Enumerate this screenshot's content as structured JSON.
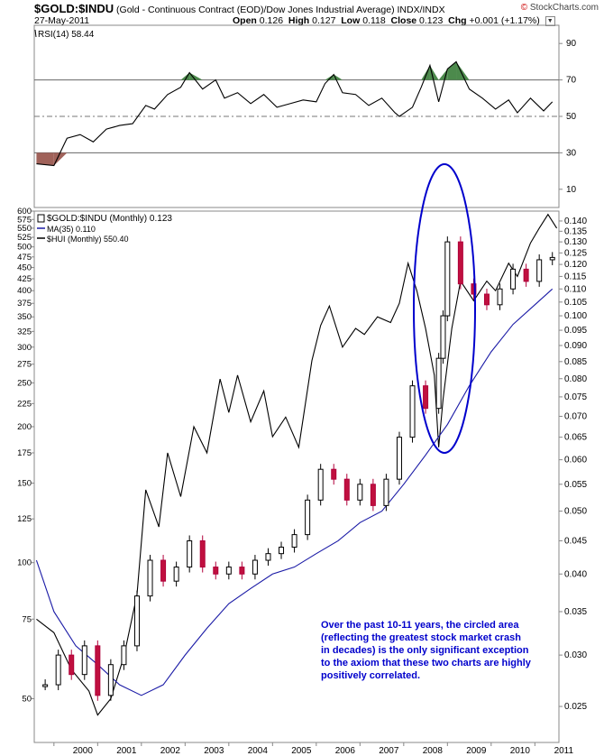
{
  "header": {
    "symbol": "$GOLD:$INDU",
    "description": "(Gold - Continuous Contract (EOD)/Dow Jones Industrial Average)",
    "exchange": "INDX/INDX",
    "brand": "StockCharts.com",
    "date": "27-May-2011",
    "open_label": "Open",
    "open": "0.126",
    "high_label": "High",
    "high": "0.127",
    "low_label": "Low",
    "low": "0.118",
    "close_label": "Close",
    "close": "0.123",
    "chg_label": "Chg",
    "chg": "+0.001 (+1.17%)",
    "dropdown_icon": "triangle-down-icon"
  },
  "legend": {
    "rsi": "RSI(14) 58.44",
    "main": "$GOLD:$INDU (Monthly) 0.123",
    "ma": "MA(35) 0.110",
    "hui": "$HUI (Monthly) 550.40"
  },
  "annotation": {
    "text_lines": [
      "Over the past 10-11 years, the circled area",
      "(reflecting the greatest stock market crash",
      "in decades) is the only significant exception",
      "to the axiom that these two charts are highly",
      "positively correlated."
    ],
    "color": "#0000cc"
  },
  "chart_data": [
    {
      "type": "line",
      "panel": "indicator",
      "name": "RSI(14)",
      "ylim": [
        0,
        100
      ],
      "y_ticks": [
        10,
        30,
        50,
        70,
        90
      ],
      "reference_lines": [
        30,
        50,
        70
      ],
      "x": [
        1999.6,
        2000.0,
        2000.3,
        2000.6,
        2000.9,
        2001.2,
        2001.5,
        2001.8,
        2002.1,
        2002.3,
        2002.6,
        2002.9,
        2003.1,
        2003.4,
        2003.7,
        2003.9,
        2004.2,
        2004.5,
        2004.8,
        2005.1,
        2005.4,
        2005.7,
        2006.0,
        2006.2,
        2006.4,
        2006.6,
        2006.9,
        2007.2,
        2007.5,
        2007.8,
        2007.9,
        2008.2,
        2008.4,
        2008.6,
        2008.8,
        2009.0,
        2009.2,
        2009.5,
        2009.8,
        2010.1,
        2010.4,
        2010.6,
        2010.9,
        2011.2,
        2011.4
      ],
      "values": [
        24,
        23,
        38,
        40,
        36,
        43,
        45,
        46,
        56,
        54,
        62,
        66,
        74,
        65,
        70,
        60,
        63,
        57,
        62,
        55,
        57,
        59,
        58,
        68,
        73,
        63,
        62,
        56,
        60,
        52,
        50,
        55,
        66,
        78,
        58,
        76,
        80,
        65,
        60,
        54,
        59,
        52,
        60,
        53,
        58
      ]
    },
    {
      "type": "candlestick",
      "panel": "price",
      "name": "$GOLD:$INDU (Monthly)",
      "y_scale": "log",
      "ylim": [
        0.022,
        0.145
      ],
      "y_ticks": [
        0.025,
        0.03,
        0.035,
        0.04,
        0.045,
        0.05,
        0.055,
        0.06,
        0.065,
        0.07,
        0.075,
        0.08,
        0.085,
        0.09,
        0.095,
        0.1,
        0.105,
        0.11,
        0.115,
        0.12,
        0.125,
        0.13,
        0.135,
        0.14
      ],
      "x_ticks": [
        "2000",
        "2001",
        "2002",
        "2003",
        "2004",
        "2005",
        "2006",
        "2007",
        "2008",
        "2009",
        "2010",
        "2011"
      ],
      "x": [
        1999.8,
        2000.1,
        2000.4,
        2000.7,
        2001.0,
        2001.3,
        2001.6,
        2001.9,
        2002.2,
        2002.5,
        2002.8,
        2003.1,
        2003.4,
        2003.7,
        2004.0,
        2004.3,
        2004.6,
        2004.9,
        2005.2,
        2005.5,
        2005.8,
        2006.1,
        2006.4,
        2006.7,
        2007.0,
        2007.3,
        2007.6,
        2007.9,
        2008.2,
        2008.5,
        2008.8,
        2008.9,
        2009.0,
        2009.3,
        2009.6,
        2009.9,
        2010.2,
        2010.5,
        2010.8,
        2011.1,
        2011.4
      ],
      "values": [
        0.027,
        0.03,
        0.028,
        0.031,
        0.026,
        0.029,
        0.031,
        0.037,
        0.042,
        0.039,
        0.041,
        0.045,
        0.041,
        0.04,
        0.041,
        0.04,
        0.042,
        0.043,
        0.044,
        0.046,
        0.052,
        0.058,
        0.056,
        0.052,
        0.055,
        0.051,
        0.056,
        0.065,
        0.078,
        0.072,
        0.086,
        0.1,
        0.13,
        0.112,
        0.108,
        0.104,
        0.11,
        0.118,
        0.113,
        0.122,
        0.123
      ]
    },
    {
      "type": "line",
      "panel": "price",
      "name": "MA(35)",
      "y_scale": "log",
      "x": [
        1999.6,
        2000.0,
        2000.5,
        2001.0,
        2001.5,
        2002.0,
        2002.5,
        2003.0,
        2003.5,
        2004.0,
        2004.5,
        2005.0,
        2005.5,
        2006.0,
        2006.5,
        2007.0,
        2007.5,
        2008.0,
        2008.5,
        2009.0,
        2009.5,
        2010.0,
        2010.5,
        2011.0,
        2011.4
      ],
      "values": [
        0.042,
        0.035,
        0.031,
        0.029,
        0.027,
        0.026,
        0.027,
        0.03,
        0.033,
        0.036,
        0.038,
        0.04,
        0.041,
        0.043,
        0.045,
        0.048,
        0.05,
        0.055,
        0.061,
        0.068,
        0.078,
        0.088,
        0.097,
        0.104,
        0.11
      ]
    },
    {
      "type": "line",
      "panel": "price",
      "name": "$HUI (Monthly)",
      "y_scale": "log",
      "ylim": [
        40,
        600
      ],
      "y_ticks": [
        50,
        75,
        100,
        125,
        150,
        175,
        200,
        225,
        250,
        275,
        300,
        325,
        350,
        375,
        400,
        425,
        450,
        475,
        500,
        525,
        550,
        575,
        600
      ],
      "x": [
        1999.6,
        2000.0,
        2000.4,
        2000.8,
        2001.0,
        2001.3,
        2001.6,
        2001.9,
        2002.1,
        2002.4,
        2002.6,
        2002.9,
        2003.2,
        2003.5,
        2003.8,
        2004.0,
        2004.2,
        2004.5,
        2004.8,
        2005.0,
        2005.3,
        2005.6,
        2005.9,
        2006.1,
        2006.3,
        2006.6,
        2006.9,
        2007.1,
        2007.4,
        2007.7,
        2007.9,
        2008.1,
        2008.3,
        2008.5,
        2008.7,
        2008.8,
        2008.9,
        2009.1,
        2009.3,
        2009.6,
        2009.9,
        2010.1,
        2010.4,
        2010.6,
        2010.9,
        2011.1,
        2011.3,
        2011.5
      ],
      "values": [
        75,
        70,
        58,
        52,
        46,
        50,
        62,
        85,
        145,
        120,
        175,
        140,
        200,
        175,
        255,
        215,
        260,
        205,
        240,
        190,
        210,
        180,
        280,
        335,
        370,
        300,
        330,
        320,
        350,
        340,
        375,
        460,
        400,
        330,
        260,
        180,
        230,
        330,
        420,
        380,
        420,
        400,
        460,
        430,
        510,
        550,
        590,
        550
      ]
    }
  ]
}
